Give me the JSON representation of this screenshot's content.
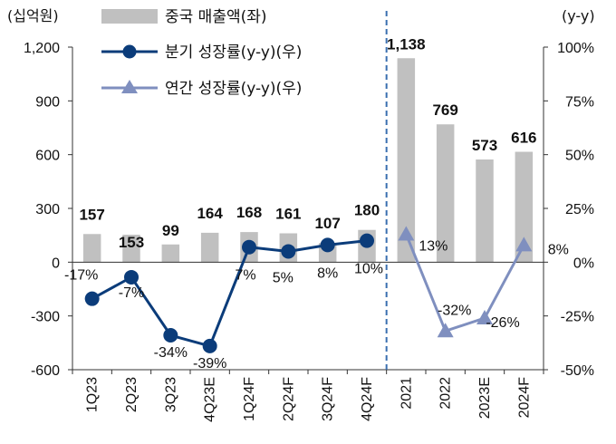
{
  "chart_data": {
    "type": "bar",
    "categories": [
      "1Q23",
      "2Q23",
      "3Q23",
      "4Q23E",
      "1Q24F",
      "2Q24F",
      "3Q24F",
      "4Q24F",
      "2021",
      "2022",
      "2023E",
      "2024F"
    ],
    "left_axis": {
      "unit_label": "(십억원)",
      "ylim": [
        -600,
        1200
      ],
      "ticks": [
        "-600",
        "-300",
        "0",
        "300",
        "600",
        "900",
        "1,200"
      ],
      "tick_values": [
        -600,
        -300,
        0,
        300,
        600,
        900,
        1200
      ]
    },
    "right_axis": {
      "unit_label": "(y-y)",
      "ylim": [
        -50,
        100
      ],
      "ticks": [
        "-50%",
        "-25%",
        "0%",
        "25%",
        "50%",
        "75%",
        "100%"
      ],
      "tick_values": [
        -50,
        -25,
        0,
        25,
        50,
        75,
        100
      ]
    },
    "series": [
      {
        "name": "중국 매출액(좌)",
        "type": "bar",
        "axis": "left",
        "color": "#c0c0c0",
        "values": [
          157,
          153,
          99,
          164,
          168,
          161,
          107,
          180,
          1138,
          769,
          573,
          616
        ],
        "labels": [
          "157",
          "153",
          "99",
          "164",
          "168",
          "161",
          "107",
          "180",
          "1,138",
          "769",
          "573",
          "616"
        ]
      },
      {
        "name": "분기 성장률(y-y)(우)",
        "type": "line",
        "axis": "right",
        "marker": "circle",
        "color": "#0b3c7a",
        "x": [
          "1Q23",
          "2Q23",
          "3Q23",
          "4Q23E",
          "1Q24F",
          "2Q24F",
          "3Q24F",
          "4Q24F"
        ],
        "values": [
          -17,
          -7,
          -34,
          -39,
          7,
          5,
          8,
          10
        ],
        "labels": [
          "-17%",
          "-7%",
          "-34%",
          "-39%",
          "7%",
          "5%",
          "8%",
          "10%"
        ]
      },
      {
        "name": "연간 성장률(y-y)(우)",
        "type": "line",
        "axis": "right",
        "marker": "triangle",
        "color": "#7f8fbf",
        "x": [
          "2021",
          "2022",
          "2023E",
          "2024F"
        ],
        "values": [
          13,
          -32,
          -26,
          8
        ],
        "labels": [
          "13%",
          "-32%",
          "-26%",
          "8%"
        ]
      }
    ],
    "divider_after": "4Q24F",
    "grid": false,
    "legend_position": "top-left"
  }
}
